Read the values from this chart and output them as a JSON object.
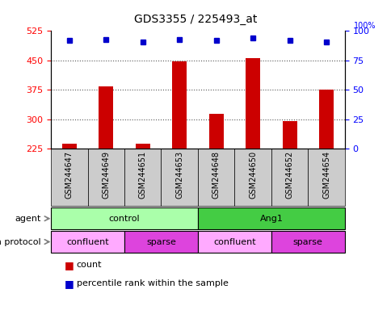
{
  "title": "GDS3355 / 225493_at",
  "samples": [
    "GSM244647",
    "GSM244649",
    "GSM244651",
    "GSM244653",
    "GSM244648",
    "GSM244650",
    "GSM244652",
    "GSM244654"
  ],
  "counts": [
    238,
    383,
    237,
    448,
    315,
    456,
    295,
    375
  ],
  "percentile_ranks": [
    92,
    93,
    91,
    93,
    92,
    94,
    92,
    91
  ],
  "ylim_left": [
    225,
    525
  ],
  "yticks_left": [
    225,
    300,
    375,
    450,
    525
  ],
  "ylim_right": [
    0,
    100
  ],
  "yticks_right": [
    0,
    25,
    50,
    75,
    100
  ],
  "bar_color": "#cc0000",
  "dot_color": "#0000cc",
  "agent_groups": [
    {
      "label": "control",
      "start": 0,
      "end": 4,
      "color": "#aaffaa"
    },
    {
      "label": "Ang1",
      "start": 4,
      "end": 8,
      "color": "#44cc44"
    }
  ],
  "growth_groups": [
    {
      "label": "confluent",
      "start": 0,
      "end": 2,
      "color": "#ffaaff"
    },
    {
      "label": "sparse",
      "start": 2,
      "end": 4,
      "color": "#dd44dd"
    },
    {
      "label": "confluent",
      "start": 4,
      "end": 6,
      "color": "#ffaaff"
    },
    {
      "label": "sparse",
      "start": 6,
      "end": 8,
      "color": "#dd44dd"
    }
  ],
  "agent_label": "agent",
  "growth_label": "growth protocol",
  "legend_count_label": "count",
  "legend_pct_label": "percentile rank within the sample",
  "grid_color": "#555555"
}
